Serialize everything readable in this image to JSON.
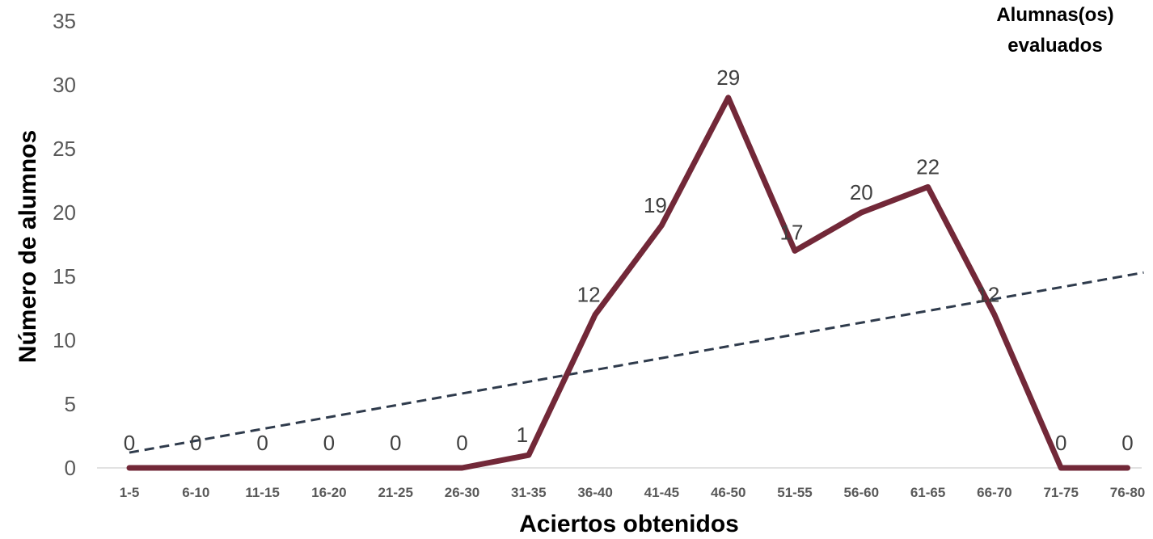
{
  "chart_data": {
    "type": "line",
    "categories": [
      "1-5",
      "6-10",
      "11-15",
      "16-20",
      "21-25",
      "26-30",
      "31-35",
      "36-40",
      "41-45",
      "46-50",
      "51-55",
      "56-60",
      "61-65",
      "66-70",
      "71-75",
      "76-80"
    ],
    "series": [
      {
        "name": "Alumnas(os) evaluados",
        "values": [
          0,
          0,
          0,
          0,
          0,
          0,
          1,
          12,
          19,
          29,
          17,
          20,
          22,
          12,
          0,
          0
        ]
      }
    ],
    "trendline": {
      "type": "linear",
      "start": 1.2,
      "end": 15.3
    },
    "xlabel": "Aciertos obtenidos",
    "ylabel": "Número de alumnos",
    "ylim": [
      0,
      35
    ],
    "yticks": [
      0,
      5,
      10,
      15,
      20,
      25,
      30,
      35
    ],
    "legend": {
      "position": "top-right",
      "line1": "Alumnas(os)",
      "line2": "evaluados"
    },
    "grid": false,
    "colors": {
      "series": "#722838",
      "trend": "#2f3b4c",
      "axis": "#d9d9d9",
      "text": "#595959"
    }
  }
}
